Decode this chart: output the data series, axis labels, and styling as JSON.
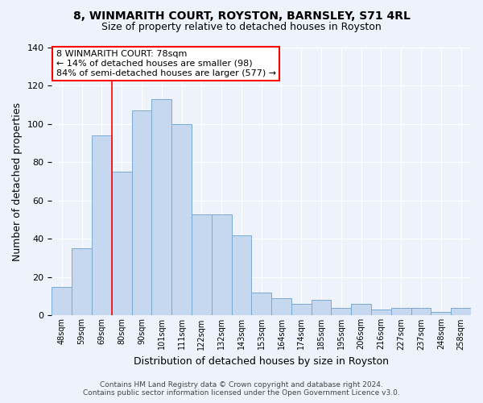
{
  "title": "8, WINMARITH COURT, ROYSTON, BARNSLEY, S71 4RL",
  "subtitle": "Size of property relative to detached houses in Royston",
  "xlabel": "Distribution of detached houses by size in Royston",
  "ylabel": "Number of detached properties",
  "bar_values": [
    15,
    35,
    94,
    75,
    107,
    113,
    100,
    53,
    53,
    42,
    12,
    9,
    6,
    8,
    4,
    6,
    3,
    4,
    4,
    2,
    4
  ],
  "bin_labels": [
    "48sqm",
    "59sqm",
    "69sqm",
    "80sqm",
    "90sqm",
    "101sqm",
    "111sqm",
    "122sqm",
    "132sqm",
    "143sqm",
    "153sqm",
    "164sqm",
    "174sqm",
    "185sqm",
    "195sqm",
    "206sqm",
    "216sqm",
    "227sqm",
    "237sqm",
    "248sqm",
    "258sqm"
  ],
  "bar_color": "#c5d8f0",
  "bar_edge_color": "#7aabd4",
  "ylim": [
    0,
    140
  ],
  "yticks": [
    0,
    20,
    40,
    60,
    80,
    100,
    120,
    140
  ],
  "vline_x_index": 2.5,
  "annotation_line1": "8 WINMARITH COURT: 78sqm",
  "annotation_line2": "← 14% of detached houses are smaller (98)",
  "annotation_line3": "84% of semi-detached houses are larger (577) →",
  "footer_line1": "Contains HM Land Registry data © Crown copyright and database right 2024.",
  "footer_line2": "Contains public sector information licensed under the Open Government Licence v3.0.",
  "bg_color": "#eef2fb",
  "grid_color": "#ffffff",
  "title_fontsize": 10,
  "subtitle_fontsize": 9,
  "ylabel_fontsize": 9,
  "xlabel_fontsize": 9,
  "tick_fontsize": 7,
  "footer_fontsize": 6.5,
  "annotation_fontsize": 8
}
